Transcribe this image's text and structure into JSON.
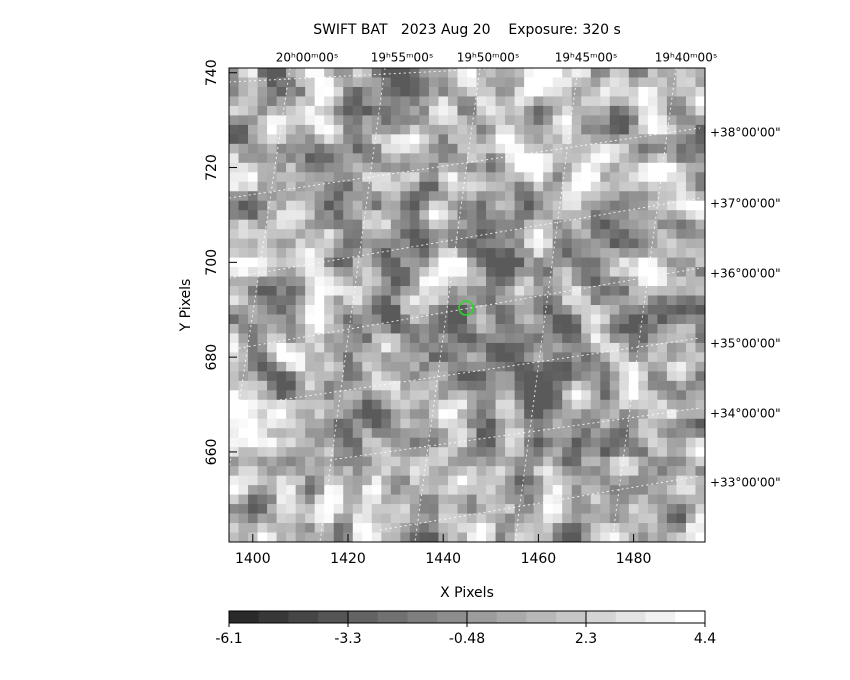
{
  "chart_data": {
    "type": "heatmap",
    "title": "SWIFT BAT   2023 Aug 20    Exposure: 320 s",
    "x_label": "X Pixels",
    "y_label": "Y Pixels",
    "xlim": [
      1395,
      1495
    ],
    "xticks": [
      1400,
      1420,
      1440,
      1460,
      1480
    ],
    "ylim": [
      641,
      741
    ],
    "yticks": [
      660,
      680,
      700,
      720,
      740
    ],
    "ra_labels": [
      "20ʰ00ᵐ00ˢ",
      "19ʰ55ᵐ00ˢ",
      "19ʰ50ᵐ00ˢ",
      "19ʰ45ᵐ00ˢ",
      "19ʰ40ᵐ00ˢ"
    ],
    "dec_labels": [
      "+38°00'00\"",
      "+37°00'00\"",
      "+36°00'00\"",
      "+35°00'00\"",
      "+34°00'00\"",
      "+33°00'00\""
    ],
    "colorbar": {
      "lim": [
        -6.1,
        4.4
      ],
      "ticks": [
        -6.1,
        -3.3,
        -0.48,
        2.3,
        4.4
      ]
    }
  }
}
